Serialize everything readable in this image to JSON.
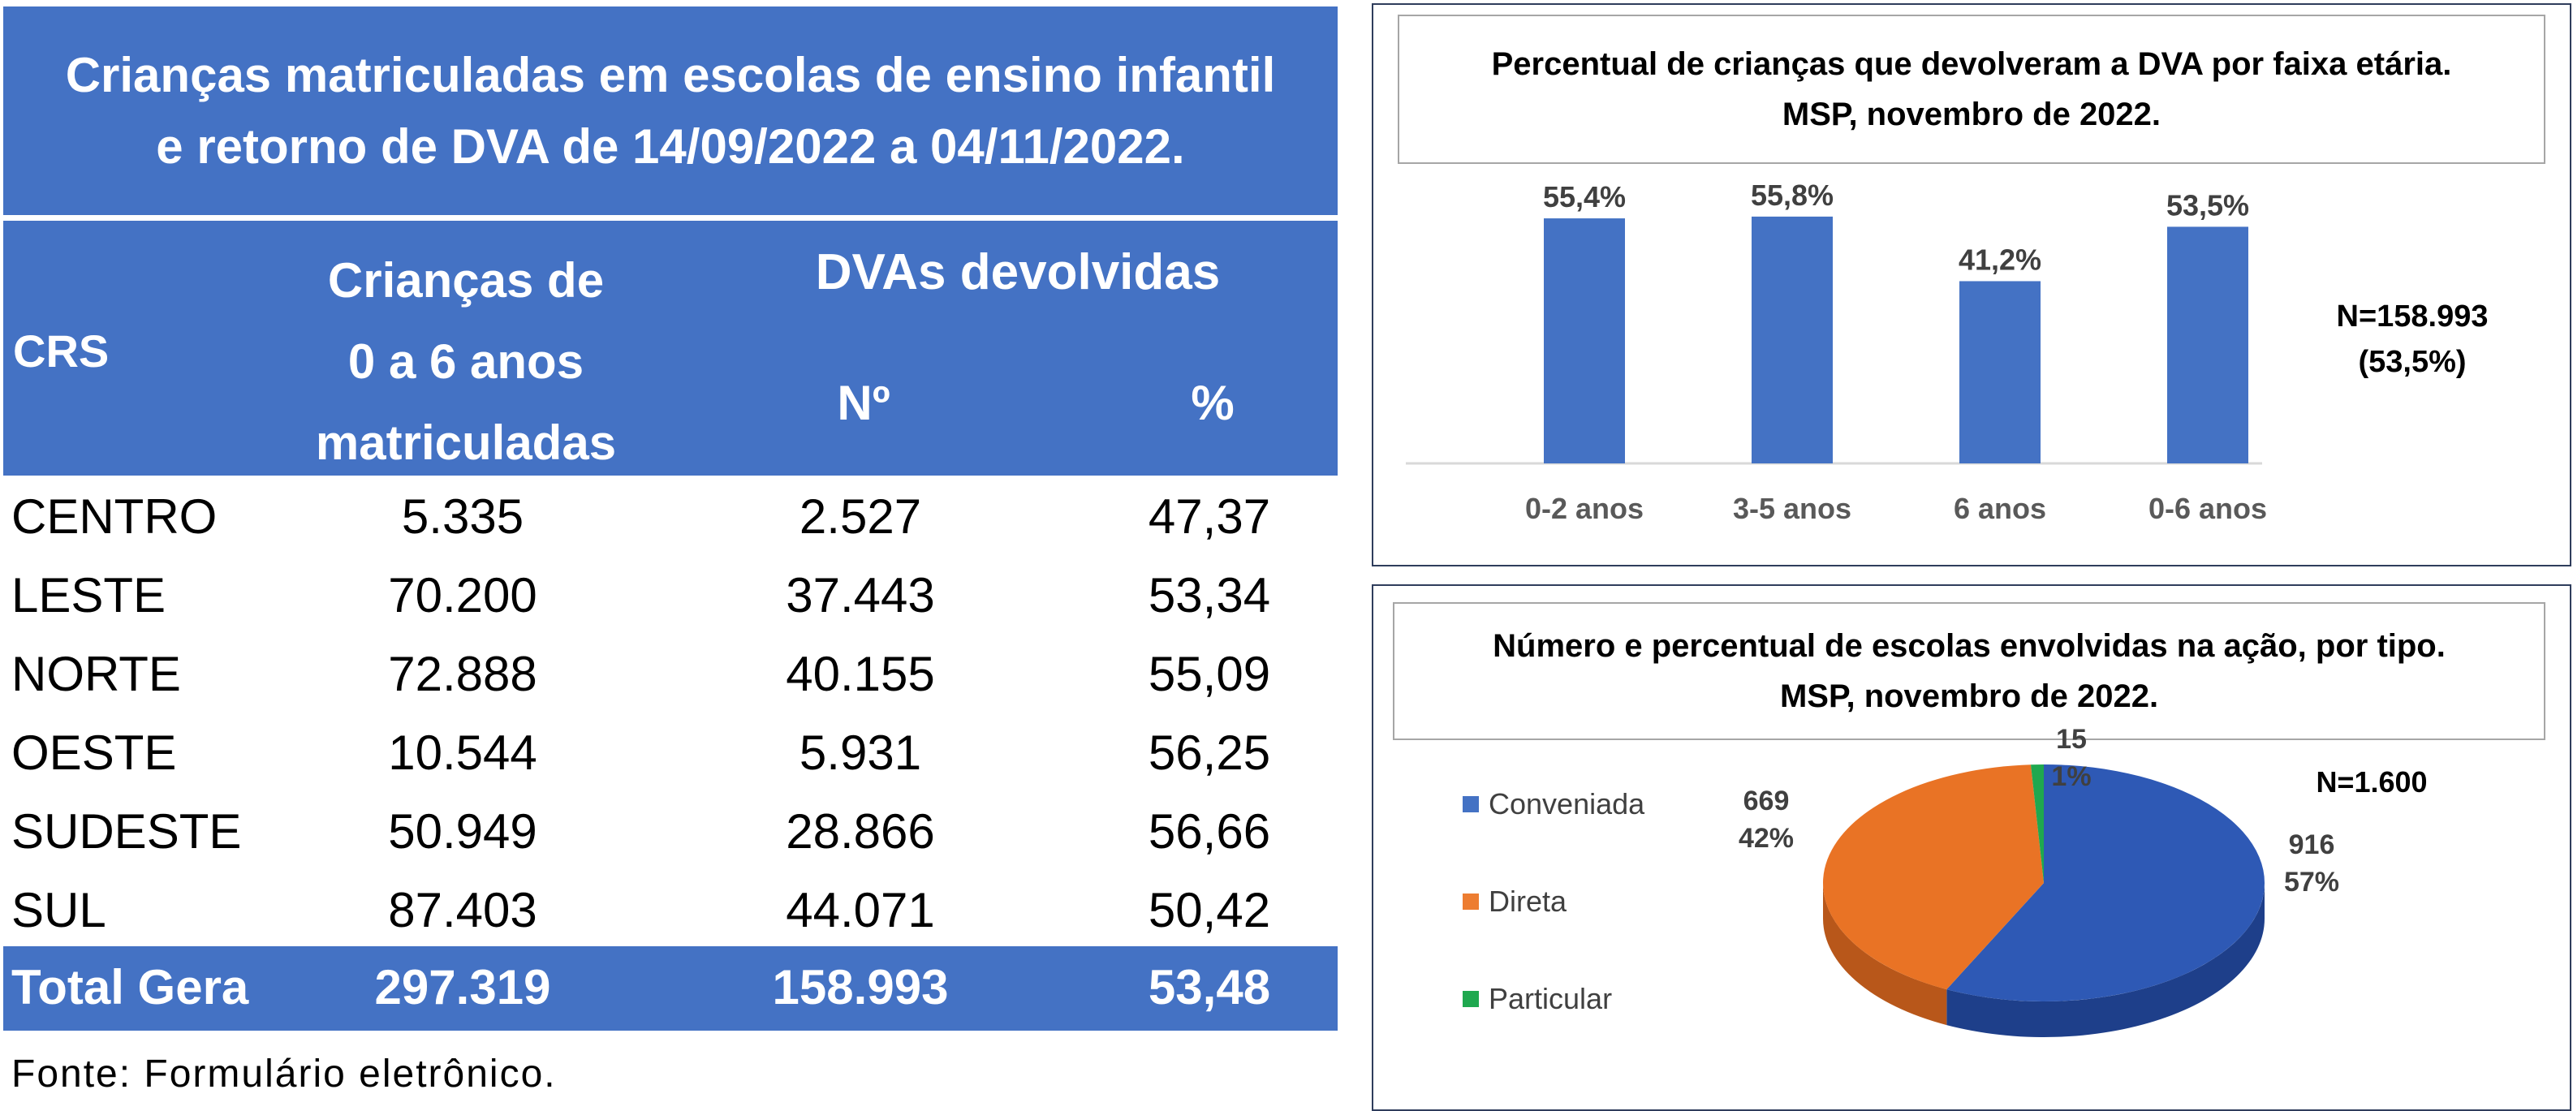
{
  "table": {
    "title_line1": "Crianças matriculadas em escolas de ensino infantil",
    "title_line2": "e retorno de DVA de 14/09/2022 a 04/11/2022.",
    "headers": {
      "crs": "CRS",
      "kids_line1": "Crianças de",
      "kids_line2": "0 a 6 anos",
      "kids_line3": "matriculadas",
      "dva": "DVAs devolvidas",
      "no": "Nº",
      "pct": "%"
    },
    "rows": [
      {
        "crs": "CENTRO",
        "kids": "5.335",
        "no": "2.527",
        "pct": "47,37"
      },
      {
        "crs": "LESTE",
        "kids": "70.200",
        "no": "37.443",
        "pct": "53,34"
      },
      {
        "crs": "NORTE",
        "kids": "72.888",
        "no": "40.155",
        "pct": "55,09"
      },
      {
        "crs": "OESTE",
        "kids": "10.544",
        "no": "5.931",
        "pct": "56,25"
      },
      {
        "crs": "SUDESTE",
        "kids": "50.949",
        "no": "28.866",
        "pct": "56,66"
      },
      {
        "crs": "SUL",
        "kids": "87.403",
        "no": "44.071",
        "pct": "50,42"
      }
    ],
    "total": {
      "crs": "Total Gera",
      "kids": "297.319",
      "no": "158.993",
      "pct": "53,48"
    },
    "source": "Fonte: Formulário eletrônico."
  },
  "colors": {
    "header_blue": "#4472C4",
    "bar_blue": "#4472C4",
    "pie_blue": "#2E59B5",
    "pie_orange": "#E97325",
    "pie_green": "#1FA84F"
  },
  "chart_data": [
    {
      "type": "bar",
      "title_line1": "Percentual de crianças que devolveram a DVA por faixa etária.",
      "title_line2": "MSP, novembro de 2022.",
      "categories": [
        "0-2 anos",
        "3-5 anos",
        "6 anos",
        "0-6 anos"
      ],
      "values": [
        55.4,
        55.8,
        41.2,
        53.5
      ],
      "data_labels": [
        "55,4%",
        "55,8%",
        "41,2%",
        "53,5%"
      ],
      "ylim": [
        0,
        100
      ],
      "grid": false,
      "note_line1": "N=158.993",
      "note_line2": "(53,5%)"
    },
    {
      "type": "pie",
      "title_line1": "Número e percentual de escolas envolvidas na ação, por tipo.",
      "title_line2": "MSP, novembro de 2022.",
      "labels": [
        "Conveniada",
        "Direta",
        "Particular"
      ],
      "values": [
        916,
        669,
        15
      ],
      "percent_labels": [
        "57%",
        "42%",
        "1%"
      ],
      "count_labels": [
        "916",
        "669",
        "15"
      ],
      "legend_position": "left",
      "note": "N=1.600"
    }
  ]
}
